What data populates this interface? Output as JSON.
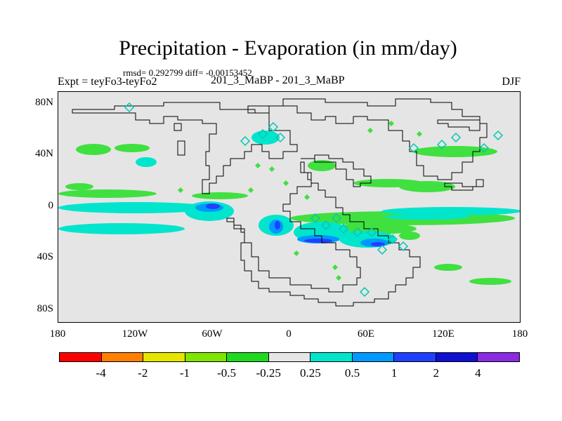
{
  "title": "Precipitation - Evaporation (in mm/day)",
  "stats": "rmsd= 0.292799 diff= -0.00153452",
  "subtitle_left": "Expt = teyFo3-teyFo2",
  "subtitle_center": "201_3_MaBP - 201_3_MaBP",
  "subtitle_right": "DJF",
  "y_axis_labels": [
    "80N",
    "40N",
    "0",
    "40S",
    "80S"
  ],
  "x_axis_labels": [
    "180",
    "120W",
    "60W",
    "0",
    "60E",
    "120E",
    "180"
  ],
  "colorbar": {
    "colors": [
      "#ff0000",
      "#ff7f00",
      "#e5e500",
      "#80e500",
      "#20d820",
      "#e5e5e5",
      "#00e5cc",
      "#0099ff",
      "#2040ff",
      "#1010d0",
      "#8a2be2"
    ],
    "labels": [
      "-4",
      "-2",
      "-1",
      "-0.5",
      "-0.25",
      "0.25",
      "0.5",
      "1",
      "2",
      "4"
    ]
  },
  "map_colors": {
    "background": "#e5e5e5",
    "coast": "#000000",
    "neg_light": "#40e040",
    "neg_med": "#80e060",
    "pos_light": "#00e5cc",
    "pos_med": "#0099ff",
    "pos_strong": "#2040ff"
  }
}
